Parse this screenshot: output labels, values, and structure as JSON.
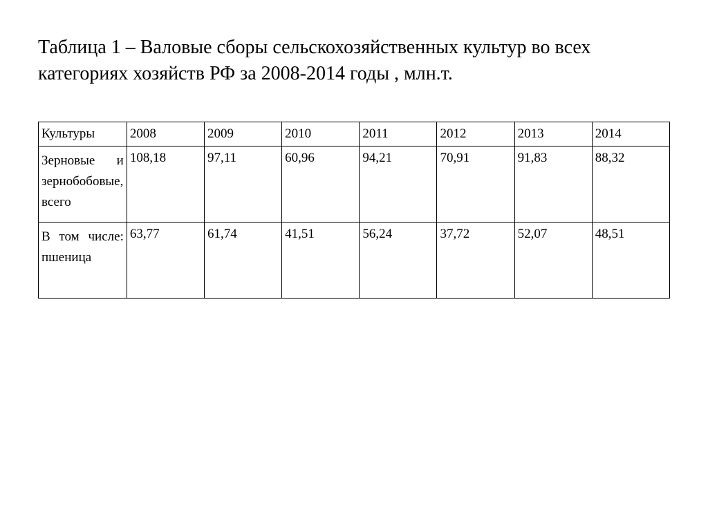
{
  "title": "Таблица 1 – Валовые сборы сельскохозяйственных культур во всех категориях хозяйств РФ за 2008-2014 годы , млн.т.",
  "table": {
    "type": "table",
    "header_label": "Культуры",
    "columns": [
      "2008",
      "2009",
      "2010",
      "2011",
      "2012",
      "2013",
      "2014"
    ],
    "rows": [
      {
        "label": "Зерновые и зернобобовые, всего",
        "values": [
          "108,18",
          "97,11",
          "60,96",
          "94,21",
          "70,91",
          "91,83",
          "88,32"
        ]
      },
      {
        "label": "В том числе: пшеница",
        "values": [
          "63,77",
          "61,74",
          "41,51",
          "56,24",
          "37,72",
          "52,07",
          "48,51"
        ]
      }
    ],
    "border_color": "#000000",
    "background_color": "#ffffff",
    "text_color": "#000000",
    "title_fontsize": 28,
    "cell_fontsize": 19,
    "font_family": "Times New Roman",
    "col_label_width_pct": 14,
    "col_year_width_pct": 12.28
  }
}
